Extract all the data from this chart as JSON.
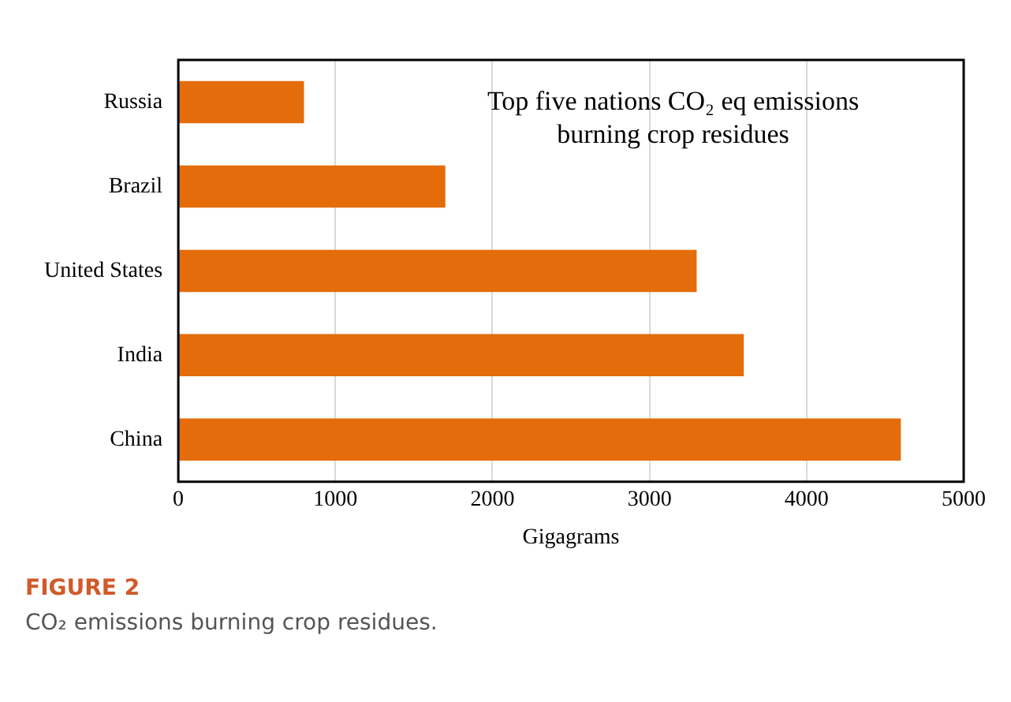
{
  "chart_data": {
    "type": "bar",
    "orientation": "horizontal",
    "title": "Top five nations CO₂ eq emissions burning crop residues",
    "categories": [
      "Russia",
      "Brazil",
      "United States",
      "India",
      "China"
    ],
    "values": [
      800,
      1700,
      3300,
      3600,
      4600
    ],
    "color": "#e46c0a",
    "xlim": [
      0,
      5000
    ],
    "xticks": [
      0,
      1000,
      2000,
      3000,
      4000,
      5000
    ],
    "xlabel": "Gigagrams",
    "grid": "x",
    "annotations": [
      "FIGURE 2",
      "CO₂ emissions burning crop residues."
    ]
  }
}
